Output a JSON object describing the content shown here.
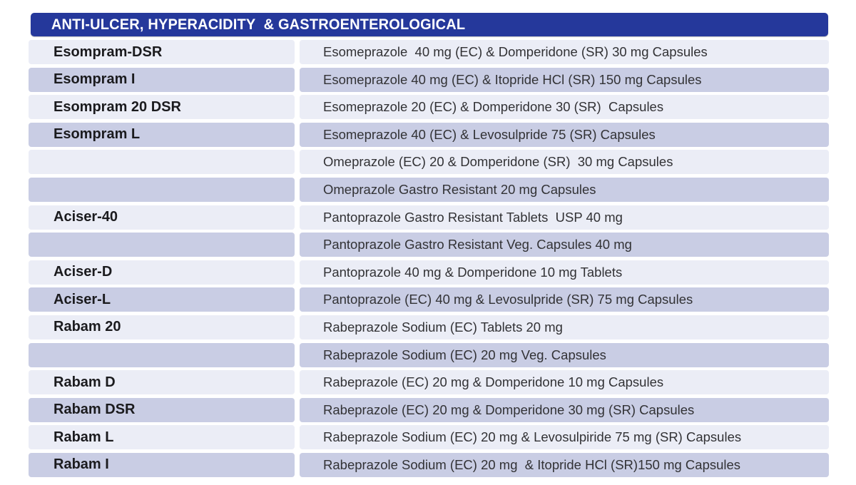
{
  "header": {
    "title": "ANTI-ULCER, HYPERACIDITY  & GASTROENTEROLOGICAL"
  },
  "colors": {
    "header_bg": "#25389b",
    "row_light": "#ebedf6",
    "row_dark": "#c9cde4",
    "text_dark": "#1b1b1e",
    "text_body": "#323235"
  },
  "table": {
    "columns": [
      "brand",
      "composition"
    ],
    "rows": [
      {
        "brand": "Esompram-DSR",
        "composition": "Esomeprazole  40 mg (EC) & Domperidone (SR) 30 mg Capsules"
      },
      {
        "brand": "Esompram I",
        "composition": "Esomeprazole 40 mg (EC) & Itopride HCl (SR) 150 mg Capsules"
      },
      {
        "brand": "Esompram 20 DSR",
        "composition": "Esomeprazole 20 (EC) & Domperidone 30 (SR)  Capsules"
      },
      {
        "brand": "Esompram L",
        "composition": "Esomeprazole 40 (EC) & Levosulpride 75 (SR) Capsules"
      },
      {
        "brand": "",
        "composition": "Omeprazole (EC) 20 & Domperidone (SR)  30 mg Capsules"
      },
      {
        "brand": "",
        "composition": "Omeprazole Gastro Resistant 20 mg Capsules"
      },
      {
        "brand": "Aciser-40",
        "composition": "Pantoprazole Gastro Resistant Tablets  USP 40 mg"
      },
      {
        "brand": "",
        "composition": "Pantoprazole Gastro Resistant Veg. Capsules 40 mg"
      },
      {
        "brand": "Aciser-D",
        "composition": "Pantoprazole 40 mg & Domperidone 10 mg Tablets"
      },
      {
        "brand": "Aciser-L",
        "composition": "Pantoprazole (EC) 40 mg & Levosulpride (SR) 75 mg Capsules"
      },
      {
        "brand": "Rabam 20",
        "composition": "Rabeprazole Sodium (EC) Tablets 20 mg"
      },
      {
        "brand": "",
        "composition": "Rabeprazole Sodium (EC) 20 mg Veg. Capsules"
      },
      {
        "brand": "Rabam D",
        "composition": "Rabeprazole (EC) 20 mg & Domperidone 10 mg Capsules"
      },
      {
        "brand": "Rabam DSR",
        "composition": "Rabeprazole (EC) 20 mg & Domperidone 30 mg (SR) Capsules"
      },
      {
        "brand": "Rabam L",
        "composition": "Rabeprazole Sodium (EC) 20 mg & Levosulpiride 75 mg (SR) Capsules"
      },
      {
        "brand": "Rabam I",
        "composition": "Rabeprazole Sodium (EC) 20 mg  & Itopride HCl (SR)150 mg Capsules"
      }
    ]
  }
}
